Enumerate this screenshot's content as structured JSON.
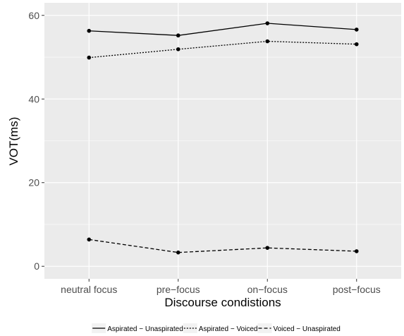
{
  "chart_data": {
    "type": "line",
    "title": "",
    "xlabel": "Discourse condistions",
    "ylabel": "VOT(ms)",
    "categories": [
      "neutral focus",
      "pre−focus",
      "on−focus",
      "post−focus"
    ],
    "ylim": [
      -3,
      63
    ],
    "yticks": [
      0,
      20,
      40,
      60
    ],
    "grid": true,
    "legend_position": "bottom",
    "panel_background": "#ebebeb",
    "grid_color": "#ffffff",
    "series": [
      {
        "name": "Aspirated − Unaspirated",
        "values": [
          56.3,
          55.2,
          58.1,
          56.6
        ],
        "line_style": "solid",
        "color": "#000000"
      },
      {
        "name": "Aspirated − Voiced",
        "values": [
          49.9,
          51.9,
          53.8,
          53.1
        ],
        "line_style": "dotted",
        "color": "#000000"
      },
      {
        "name": "Voiced − Unaspirated",
        "values": [
          6.4,
          3.3,
          4.4,
          3.6
        ],
        "line_style": "dashed",
        "color": "#000000"
      }
    ]
  }
}
